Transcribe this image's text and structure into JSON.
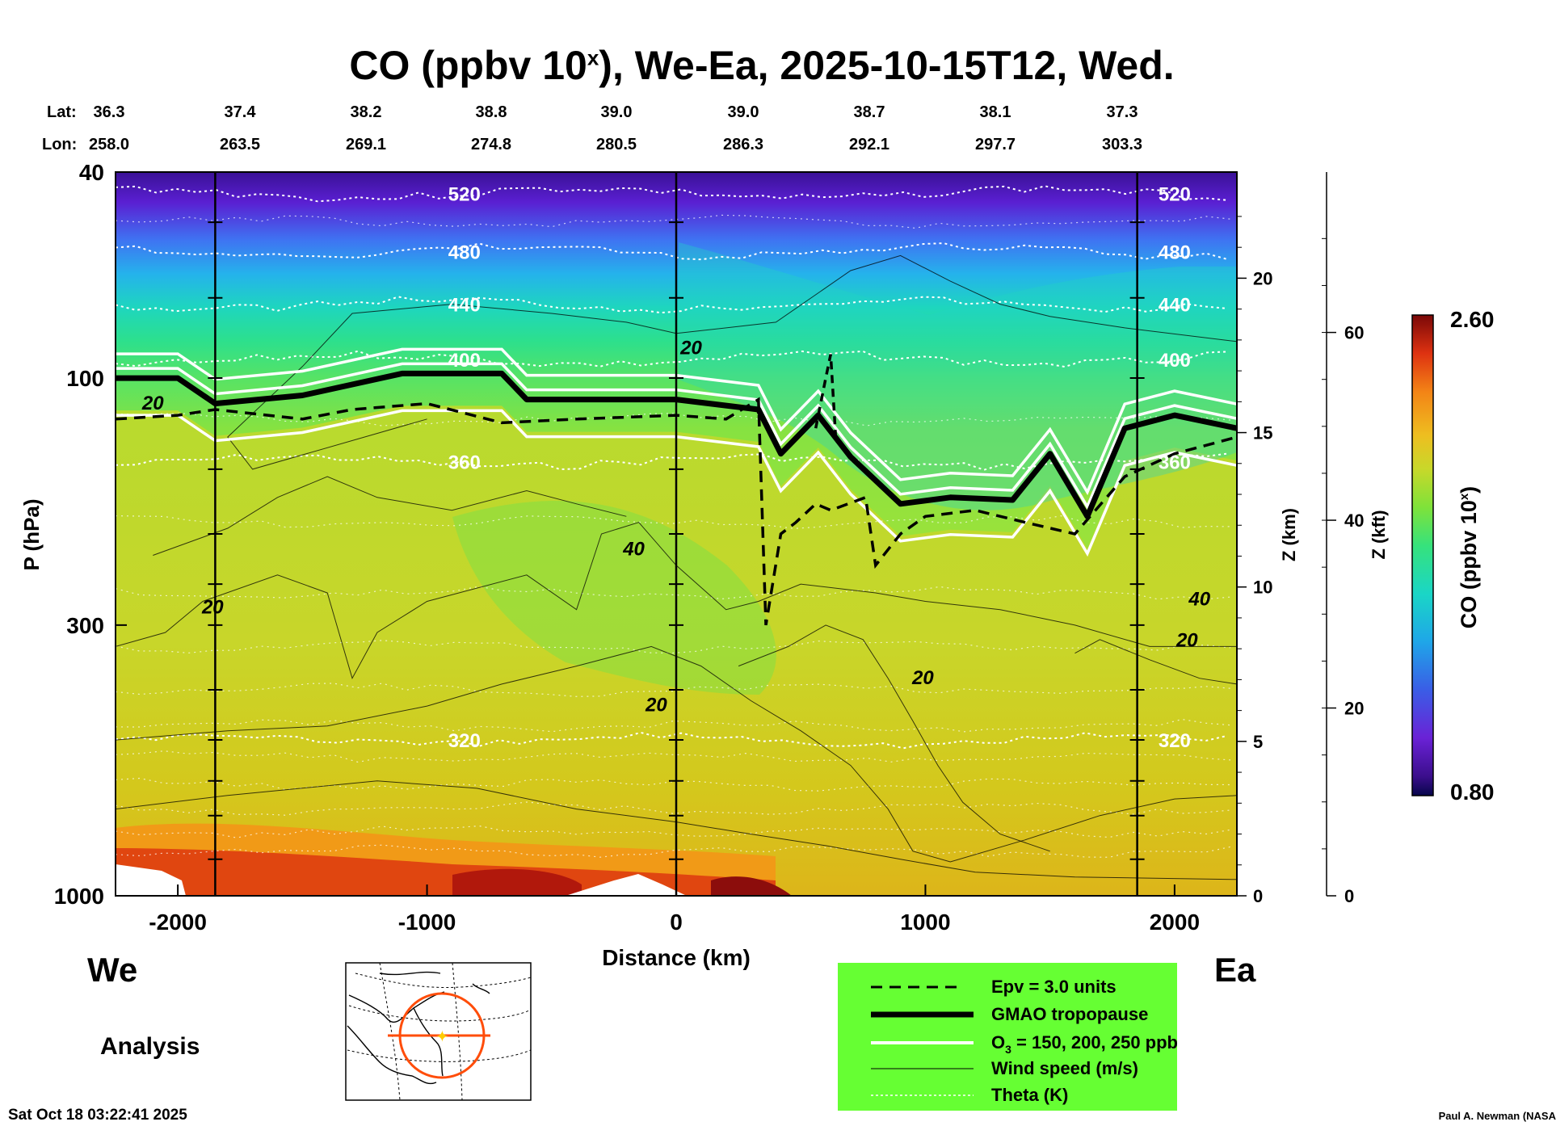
{
  "title_main": "CO (ppbv 10",
  "title_sup": "x",
  "title_rest": "), We-Ea, 2025-10-15T12, Wed.",
  "lat_label": "Lat:",
  "lon_label": "Lon:",
  "lat_values": [
    "36.3",
    "37.4",
    "38.2",
    "38.8",
    "39.0",
    "39.0",
    "38.7",
    "38.1",
    "37.3"
  ],
  "lon_values": [
    "258.0",
    "263.5",
    "269.1",
    "274.8",
    "280.5",
    "286.3",
    "292.1",
    "297.7",
    "303.3"
  ],
  "west_label": "We",
  "east_label": "Ea",
  "analysis_label": "Analysis",
  "timestamp": "Sat Oct 18 03:22:41 2025",
  "credit": "Paul A. Newman (NASA",
  "colorbar": {
    "max_label": "2.60",
    "min_label": "0.80",
    "title": "CO (ppbv 10",
    "title_sup": "x",
    "title_end": ")"
  },
  "legend": {
    "epv": "Epv = 3.0 units",
    "tropopause": "GMAO tropopause",
    "o3_prefix": "O",
    "o3_sub": "3",
    "o3_rest": " = 150, 200, 250 ppb",
    "wind": "Wind speed (m/s)",
    "theta": "Theta (K)"
  },
  "colors": {
    "legend_bg": "#66ff33",
    "panel_green": "#7fe23a"
  },
  "chart_data": {
    "type": "heatmap",
    "title": "CO (ppbv 10x), We-Ea, 2025-10-15T12, Wed.",
    "xlabel": "Distance (km)",
    "ylabel": "P (hPa)",
    "z_km_label": "Z (km)",
    "z_kft_label": "Z (kft)",
    "xlim": [
      -2250,
      2250
    ],
    "ylim": [
      1000,
      40
    ],
    "x_ticks": [
      "-2000",
      "-1000",
      "0",
      "1000",
      "2000"
    ],
    "x_tick_values": [
      -2000,
      -1000,
      0,
      1000,
      2000
    ],
    "p_ticks": [
      "40",
      "100",
      "300",
      "1000"
    ],
    "p_tick_values": [
      40,
      100,
      300,
      1000
    ],
    "z_km_ticks": [
      "0",
      "5",
      "10",
      "15",
      "20"
    ],
    "z_kft_ticks": [
      "0",
      "20",
      "40",
      "60"
    ],
    "color_range": [
      0.8,
      2.6
    ],
    "tropopause_pressure_hpa": [
      [
        -2250,
        100
      ],
      [
        -2000,
        100
      ],
      [
        -1850,
        112
      ],
      [
        -1500,
        108
      ],
      [
        -1100,
        98
      ],
      [
        -700,
        98
      ],
      [
        -600,
        110
      ],
      [
        0,
        110
      ],
      [
        330,
        115
      ],
      [
        420,
        140
      ],
      [
        570,
        118
      ],
      [
        700,
        142
      ],
      [
        900,
        175
      ],
      [
        1100,
        170
      ],
      [
        1350,
        172
      ],
      [
        1500,
        140
      ],
      [
        1650,
        185
      ],
      [
        1800,
        125
      ],
      [
        2000,
        118
      ],
      [
        2250,
        125
      ]
    ],
    "theta_levels": [
      {
        "label": "520",
        "p_hpa": 44
      },
      {
        "label": "480",
        "p_hpa": 57
      },
      {
        "label": "440",
        "p_hpa": 72
      },
      {
        "label": "400",
        "p_hpa": 92
      },
      {
        "label": "360",
        "p_hpa": 145
      },
      {
        "label": "320",
        "p_hpa": 500
      }
    ],
    "wind_labels": [
      {
        "label": "20",
        "x_km": -2100,
        "p_hpa": 115
      },
      {
        "label": "20",
        "x_km": 60,
        "p_hpa": 90
      },
      {
        "label": "40",
        "x_km": -170,
        "p_hpa": 220
      },
      {
        "label": "20",
        "x_km": -1860,
        "p_hpa": 285
      },
      {
        "label": "20",
        "x_km": -80,
        "p_hpa": 440
      },
      {
        "label": "20",
        "x_km": 990,
        "p_hpa": 390
      },
      {
        "label": "40",
        "x_km": 2100,
        "p_hpa": 275
      },
      {
        "label": "20",
        "x_km": 2050,
        "p_hpa": 330
      }
    ],
    "profile_lines_km": [
      -1850,
      0,
      1850
    ]
  }
}
